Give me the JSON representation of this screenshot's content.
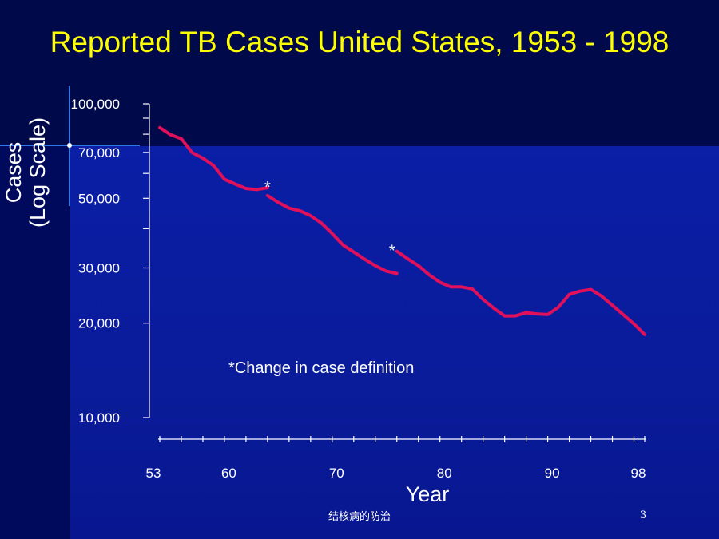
{
  "slide": {
    "title": "Reported TB Cases United States, 1953 - 1998",
    "footer": "结核病的防治",
    "page_number": "3"
  },
  "chart_data": {
    "type": "line",
    "title": "Reported TB Cases United States, 1953 - 1998",
    "ylabel": "Cases\n(Log Scale)",
    "ylabel_lines": [
      "Cases",
      "(Log Scale)"
    ],
    "xlabel": "Year",
    "y_scale": "log",
    "ylim": [
      10000,
      100000
    ],
    "xlim": [
      53,
      98
    ],
    "y_ticks": [
      100000,
      70000,
      50000,
      30000,
      20000,
      10000
    ],
    "y_tick_labels": [
      "100,000",
      "70,000",
      "50,000",
      "30,000",
      "20,000",
      "10,000"
    ],
    "x_ticks": [
      53,
      60,
      70,
      80,
      90,
      98
    ],
    "x_tick_labels": [
      "53",
      "60",
      "70",
      "80",
      "90",
      "98"
    ],
    "grid": false,
    "line_color": "#e0105a",
    "series": [
      {
        "segment": 1,
        "x": [
          53,
          54,
          55,
          56,
          57,
          58,
          59,
          60,
          61,
          62,
          63
        ],
        "y": [
          84000,
          79700,
          77400,
          69900,
          67100,
          63500,
          57500,
          55500,
          53700,
          53300,
          54000
        ]
      },
      {
        "segment": 2,
        "x": [
          63,
          64,
          65,
          66,
          67,
          68,
          69,
          70,
          71,
          72,
          73,
          74,
          75
        ],
        "y": [
          51000,
          48500,
          46500,
          45600,
          44000,
          41700,
          38600,
          35500,
          33700,
          32000,
          30500,
          29300,
          28800
        ]
      },
      {
        "segment": 3,
        "x": [
          75,
          76,
          77,
          78,
          79,
          80,
          81,
          82,
          83,
          84,
          85,
          86,
          87,
          88,
          89,
          90,
          91,
          92,
          93,
          94,
          95,
          96,
          97,
          98
        ],
        "y": [
          33900,
          32100,
          30500,
          28500,
          27000,
          26100,
          26100,
          25700,
          23800,
          22300,
          21100,
          21100,
          21600,
          21400,
          21300,
          22500,
          24700,
          25300,
          25600,
          24400,
          22800,
          21300,
          19900,
          18400
        ]
      }
    ],
    "markers": [
      {
        "text": "*",
        "x": 63,
        "y": 54000
      },
      {
        "text": "*",
        "x": 75,
        "y": 33900
      }
    ],
    "annotation": "*Change in case definition"
  }
}
